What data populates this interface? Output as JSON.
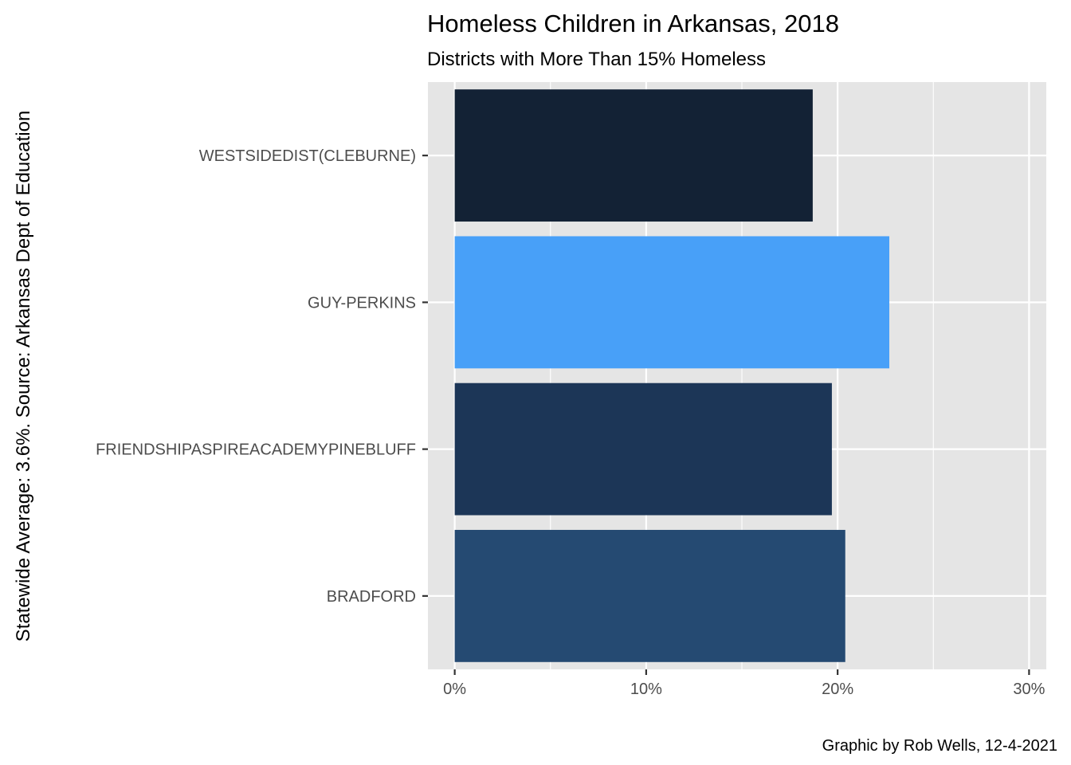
{
  "chart_data": {
    "type": "bar",
    "orientation": "horizontal",
    "title": "Homeless Children in Arkansas, 2018",
    "subtitle": "Districts with More Than 15% Homeless",
    "ylabel": "Statewide Average: 3.6%. Source: Arkansas Dept of Education",
    "xlabel": "",
    "caption": "Graphic by Rob Wells, 12-4-2021",
    "categories": [
      "WESTSIDEDIST(CLEBURNE)",
      "GUY-PERKINS",
      "FRIENDSHIPASPIREACADEMYPINEBLUFF",
      "BRADFORD"
    ],
    "values": [
      18.7,
      22.7,
      19.7,
      20.4
    ],
    "colors": [
      "#132235",
      "#48a0f8",
      "#1c3657",
      "#254a72"
    ],
    "xlim": [
      -1.4,
      30.9
    ],
    "xticks": [
      0,
      10,
      20,
      30
    ],
    "xtick_labels": [
      "0%",
      "10%",
      "20%",
      "30%"
    ],
    "grid": true,
    "background": "#e5e5e5",
    "grid_color": "#ffffff"
  }
}
